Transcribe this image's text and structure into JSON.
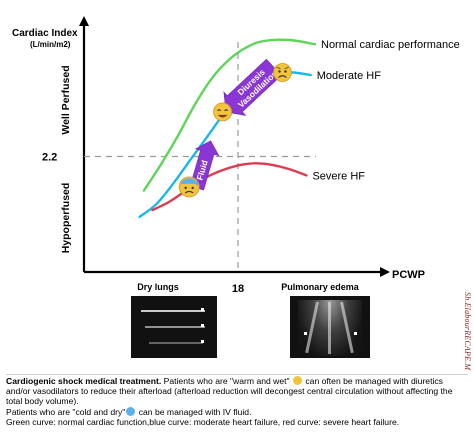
{
  "chart_data": {
    "type": "line",
    "xlabel": "PCWP",
    "ylabel": "Cardiac Index",
    "ylabel_unit": "(L/min/m2)",
    "x_ticks": [
      18
    ],
    "y_ticks": [
      2.2
    ],
    "region_labels": {
      "top": "Well Perfused",
      "bottom": "Hypoperfused",
      "left": "Dry lungs",
      "right": "Pulmonary edema"
    },
    "grid": "dashed reference lines at 18 and 2.2",
    "series": [
      {
        "name": "Normal cardiac performance",
        "color": "#5fd35a",
        "points": [
          [
            7,
            1.55
          ],
          [
            9,
            2.05
          ],
          [
            11,
            2.6
          ],
          [
            13,
            3.2
          ],
          [
            15,
            3.7
          ],
          [
            17,
            4.05
          ],
          [
            19,
            4.28
          ],
          [
            21,
            4.4
          ],
          [
            24,
            4.42
          ],
          [
            27,
            4.34
          ]
        ]
      },
      {
        "name": "Moderate HF",
        "color": "#1ab7ea",
        "points": [
          [
            6.5,
            1.05
          ],
          [
            8.5,
            1.3
          ],
          [
            10.5,
            1.7
          ],
          [
            12.5,
            2.15
          ],
          [
            14.5,
            2.6
          ],
          [
            16.5,
            3.05
          ],
          [
            18.5,
            3.4
          ],
          [
            20.5,
            3.65
          ],
          [
            22.5,
            3.78
          ],
          [
            24.5,
            3.8
          ],
          [
            26.5,
            3.75
          ]
        ]
      },
      {
        "name": "Severe HF",
        "color": "#dc3c50",
        "points": [
          [
            8,
            1.18
          ],
          [
            10,
            1.34
          ],
          [
            12,
            1.56
          ],
          [
            14,
            1.78
          ],
          [
            16,
            1.93
          ],
          [
            18,
            2.03
          ],
          [
            20,
            2.07
          ],
          [
            22,
            2.04
          ],
          [
            24,
            1.96
          ],
          [
            26,
            1.84
          ]
        ]
      }
    ],
    "annotations": [
      {
        "text": "Fluid",
        "from": [
          13.2,
          1.6
        ],
        "to": [
          14.8,
          2.5
        ]
      },
      {
        "text": "Diuresis\nVasodilation",
        "from": [
          22.2,
          3.9
        ],
        "to": [
          16.6,
          3.05
        ]
      }
    ],
    "emojis": [
      {
        "name": "cold-sweat-emoji",
        "at": [
          12.3,
          1.62
        ],
        "color": "#5fb0e8"
      },
      {
        "name": "smile-emoji",
        "at": [
          16.2,
          3.05
        ],
        "color": "#f3c33b"
      },
      {
        "name": "sad-emoji",
        "at": [
          23.2,
          3.8
        ],
        "color": "#f3c33b"
      }
    ]
  },
  "ultrasound": {
    "left_label": "Dry lungs",
    "right_label": "Pulmonary edema"
  },
  "watermark": "Sh.ElabourRECAPE.M",
  "caption": {
    "line1_bold": "Cardiogenic shock medical treatment.",
    "line1_rest": " Patients who are \"warm and wet\"",
    "line1_after": " can often be managed with diuretics and/or vasodilators to reduce their afterload (afterload reduction will decongest central circulation without affecting the total body volume).",
    "line2_before": "Patients who are \"cold and dry\"",
    "line2_after": " can be managed with IV fluid.",
    "line3": "Green curve: normal cardiac function,blue curve: moderate heart failure, red curve: severe heart failure."
  }
}
